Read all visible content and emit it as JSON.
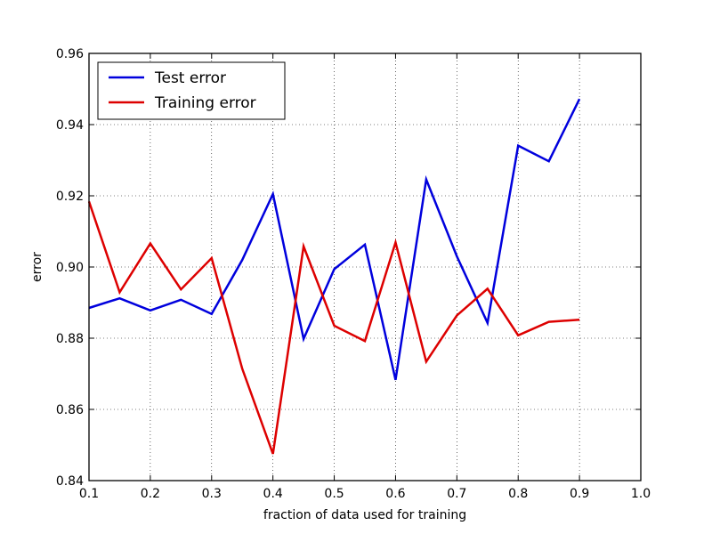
{
  "chart_data": {
    "type": "line",
    "xlabel": "fraction of data used for training",
    "ylabel": "error",
    "xlim": [
      0.1,
      1.0
    ],
    "ylim": [
      0.84,
      0.96
    ],
    "xticks": [
      0.1,
      0.2,
      0.3,
      0.4,
      0.5,
      0.6,
      0.7,
      0.8,
      0.9,
      1.0
    ],
    "xtick_labels": [
      "0.1",
      "0.2",
      "0.3",
      "0.4",
      "0.5",
      "0.6",
      "0.7",
      "0.8",
      "0.9",
      "1.0"
    ],
    "yticks": [
      0.84,
      0.86,
      0.88,
      0.9,
      0.92,
      0.94,
      0.96
    ],
    "ytick_labels": [
      "0.84",
      "0.86",
      "0.88",
      "0.90",
      "0.92",
      "0.94",
      "0.96"
    ],
    "grid": true,
    "legend": {
      "placement": "top-left",
      "entries": [
        "Test error",
        "Training error"
      ]
    },
    "x": [
      0.1,
      0.15,
      0.2,
      0.25,
      0.3,
      0.35,
      0.4,
      0.45,
      0.5,
      0.55,
      0.6,
      0.65,
      0.7,
      0.75,
      0.8,
      0.85,
      0.9
    ],
    "series": [
      {
        "name": "Test error",
        "color": "#0000dd",
        "values": [
          0.8885,
          0.8912,
          0.8878,
          0.8908,
          0.8868,
          0.902,
          0.9205,
          0.8798,
          0.8994,
          0.9063,
          0.8683,
          0.9246,
          0.903,
          0.8843,
          0.9341,
          0.9297,
          0.9472
        ]
      },
      {
        "name": "Training error",
        "color": "#dd0000",
        "values": [
          0.9184,
          0.8929,
          0.9066,
          0.8937,
          0.9025,
          0.8714,
          0.8475,
          0.9058,
          0.8835,
          0.8792,
          0.9069,
          0.8734,
          0.8864,
          0.8939,
          0.8808,
          0.8846,
          0.8852
        ]
      }
    ]
  }
}
